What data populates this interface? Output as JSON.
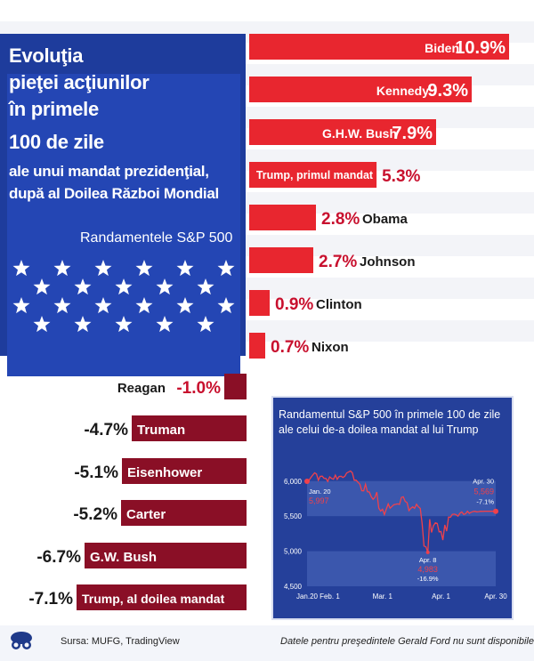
{
  "title": {
    "line1": "Evoluţia",
    "line2": "pieţei acţiunilor",
    "line3": "în primele",
    "line4": "100 de zile",
    "line5": "ale unui mandat prezidenţial,",
    "line6": "după al Doilea Război Mondial"
  },
  "subtitle": "Randamentele S&P 500",
  "chart_data": [
    {
      "type": "bar",
      "title": "Randamentele S&P 500",
      "unit": "%",
      "categories": [
        "Biden",
        "Kennedy",
        "G.H.W. Bush",
        "Trump, primul mandat",
        "Obama",
        "Johnson",
        "Clinton",
        "Nixon",
        "Reagan",
        "Truman",
        "Eisenhower",
        "Carter",
        "G.W. Bush",
        "Trump, al doilea mandat"
      ],
      "values": [
        10.9,
        9.3,
        7.9,
        5.3,
        2.8,
        2.7,
        0.9,
        0.7,
        -1.0,
        -4.7,
        -5.1,
        -5.2,
        -6.7,
        -7.1
      ],
      "value_labels": [
        "10.9%",
        "9.3%",
        "7.9%",
        "5.3%",
        "2.8%",
        "2.7%",
        "0.9%",
        "0.7%",
        "-1.0%",
        "-4.7%",
        "-5.1%",
        "-5.2%",
        "-6.7%",
        "-7.1%"
      ],
      "colors": {
        "positive": "#e8262f",
        "negative": "#8a0f26"
      }
    },
    {
      "type": "line",
      "title_line1": "Randamentul S&P 500 în primele 100 de zile",
      "title_line2": "ale celui de-a doilea mandat al lui Trump",
      "x_tick_labels": [
        "Jan.20",
        "Feb. 1",
        "Mar. 1",
        "Apr. 1",
        "Apr. 30"
      ],
      "y_tick_labels": [
        "6,000",
        "5,500",
        "5,000",
        "4,500"
      ],
      "ylim": [
        4500,
        6200
      ],
      "series": [
        {
          "name": "S&P 500",
          "x": [
            0,
            1,
            2,
            3,
            4,
            5,
            6,
            7,
            8,
            9,
            10,
            11,
            12,
            13,
            14,
            15,
            16,
            17,
            18,
            19,
            20,
            21,
            22,
            23,
            24,
            25,
            26,
            27,
            28,
            29,
            30,
            31,
            32,
            33,
            34,
            35,
            36,
            37,
            38,
            39,
            40,
            41,
            42,
            43,
            44,
            45,
            46,
            47,
            48,
            49,
            50,
            51,
            52,
            53,
            54,
            55,
            56,
            57,
            58,
            59,
            60,
            61,
            62,
            63,
            64,
            65,
            66,
            67,
            68,
            69,
            70,
            71,
            72,
            73,
            74,
            75,
            76,
            77,
            78,
            79,
            80,
            81,
            82,
            83,
            84,
            85,
            86,
            87,
            88,
            89,
            90,
            91,
            92,
            93,
            94,
            95,
            96,
            97,
            98,
            99,
            100
          ],
          "values": [
            5997,
            6010,
            6049,
            6086,
            6118,
            6101,
            6012,
            6067,
            6071,
            6040,
            6038,
            5994,
            6061,
            6038,
            6026,
            6084,
            6025,
            6066,
            6069,
            6052,
            6068,
            6115,
            6129,
            6144,
            6117,
            6012,
            6013,
            5983,
            5955,
            5862,
            5861,
            5954,
            5849,
            5843,
            5778,
            5739,
            5770,
            5842,
            5614,
            5572,
            5599,
            5522,
            5599,
            5675,
            5614,
            5638,
            5663,
            5668,
            5675,
            5667,
            5768,
            5776,
            5712,
            5693,
            5580,
            5612,
            5633,
            5611,
            5670,
            5633,
            5611,
            5396,
            5074,
            5062,
            4983,
            5456,
            5268,
            5363,
            5405,
            5396,
            5275,
            5282,
            5158,
            5376,
            5285,
            5487,
            5484,
            5525,
            5529,
            5520,
            5500,
            5540,
            5560,
            5525,
            5533,
            5569,
            5540,
            5555,
            5566,
            5569,
            5560,
            5565,
            5570,
            5568,
            5569,
            5569,
            5569,
            5569,
            5569,
            5569,
            5569
          ]
        }
      ],
      "annotations": [
        {
          "label": "Jan. 20",
          "value": "5,997"
        },
        {
          "label": "Apr. 8",
          "value": "4,983",
          "change": "-16.9%"
        },
        {
          "label": "Apr. 30",
          "value": "5,569",
          "change": "-7.1%"
        }
      ],
      "bands": [
        {
          "from": 4500,
          "to": 5000
        },
        {
          "from": 5500,
          "to": 6000
        }
      ]
    }
  ],
  "footer": {
    "source": "Sursa: MUFG, TradingView",
    "note": "Datele pentru preşedintele Gerald Ford nu sunt disponibile."
  },
  "icon": "logo-glasses-icon"
}
